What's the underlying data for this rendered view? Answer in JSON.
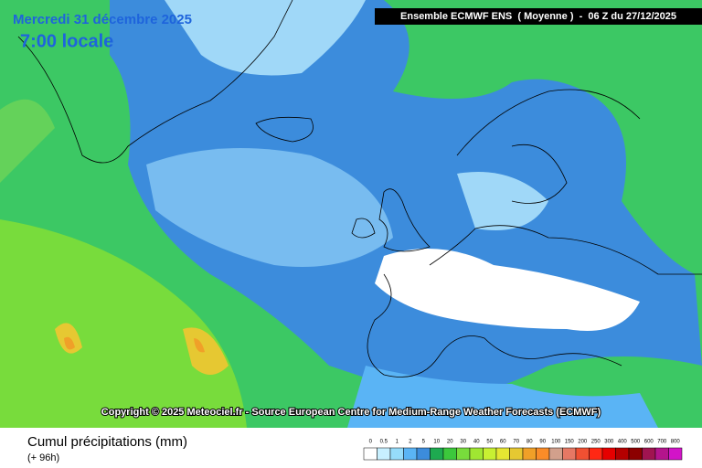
{
  "header": {
    "date": "Mercredi 31 décembre 2025",
    "time": "7:00 locale",
    "model": "Ensemble ECMWF ENS  ( Moyenne )  -  06 Z du 27/12/2025"
  },
  "copyright": "Copyright © 2025 Meteociel.fr - Source European Centre for Medium-Range Weather Forecasts (ECMWF)",
  "footer": {
    "title": "Cumul précipitations (mm)",
    "subtitle": "(+ 96h)"
  },
  "legend": {
    "labels": [
      "0",
      "0.5",
      "1",
      "2",
      "5",
      "10",
      "20",
      "30",
      "40",
      "50",
      "60",
      "70",
      "80",
      "90",
      "100",
      "150",
      "200",
      "250",
      "300",
      "400",
      "500",
      "600",
      "700",
      "800"
    ],
    "colors": [
      "#ffffff",
      "#c8f0ff",
      "#96dcfa",
      "#5ab4f5",
      "#3c8cdc",
      "#1eaa50",
      "#3cc83c",
      "#78dc3c",
      "#a0e632",
      "#c8f032",
      "#e6e632",
      "#e6c832",
      "#f0a028",
      "#fa8c28",
      "#d2a08c",
      "#e67864",
      "#f05032",
      "#ff2814",
      "#e60000",
      "#b40000",
      "#8c0000",
      "#a01450",
      "#b4148c",
      "#d214c8"
    ]
  }
}
